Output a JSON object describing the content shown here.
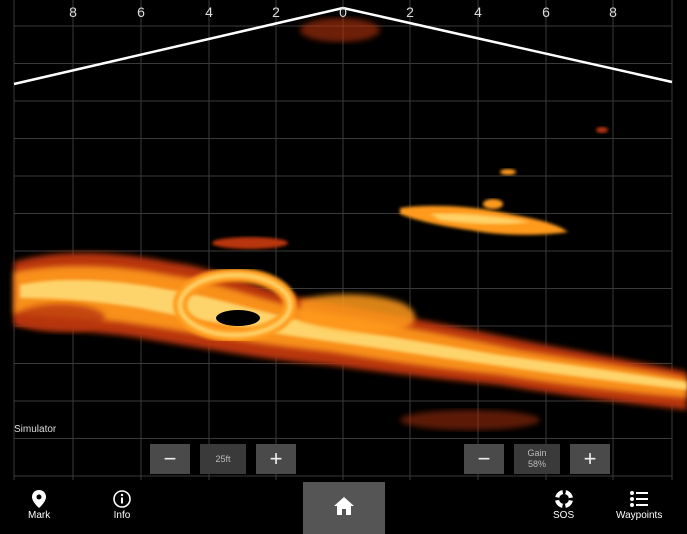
{
  "range_scale": {
    "ticks": [
      "8",
      "6",
      "4",
      "2",
      "0",
      "2",
      "4",
      "6",
      "8"
    ]
  },
  "status": {
    "label": "Simulator"
  },
  "range_control": {
    "minus": "−",
    "value": "25ft",
    "plus": "+"
  },
  "gain_control": {
    "minus": "−",
    "title": "Gain",
    "value": "58%",
    "plus": "+"
  },
  "bottom_bar": {
    "mark": "Mark",
    "info": "Info",
    "sos": "SOS",
    "waypoints": "Waypoints"
  },
  "colors": {
    "background": "#000000",
    "echo_hot": "#ffe07a",
    "echo_mid": "#ff9a1a",
    "echo_low": "#b8360c",
    "grid": "#3a3a3a",
    "cone": "#ffffff",
    "button": "#4a4a4a"
  },
  "icons": [
    "map-pin-icon",
    "info-circle-icon",
    "home-icon",
    "lifebuoy-icon",
    "list-icon"
  ]
}
